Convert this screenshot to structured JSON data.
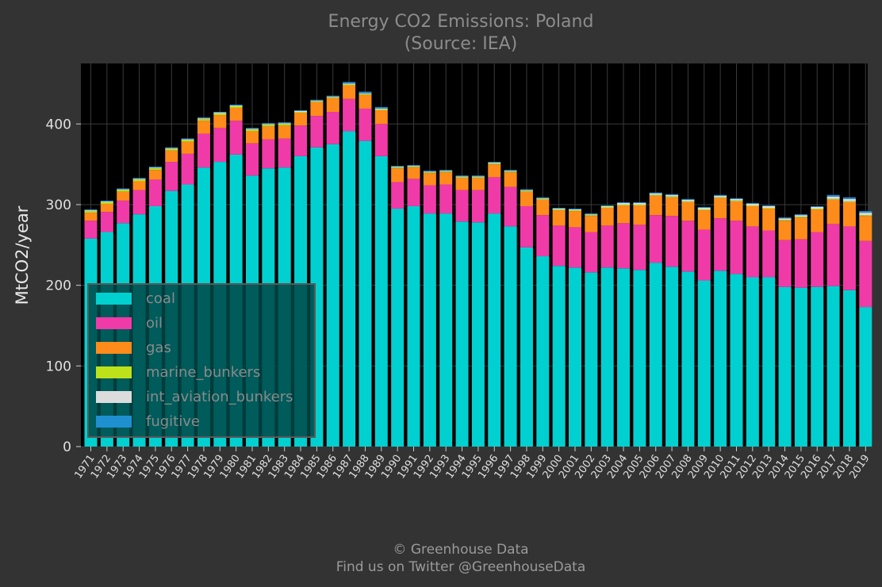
{
  "chart_data": {
    "type": "bar",
    "stacked": true,
    "title": "Energy CO2 Emissions: Poland",
    "subtitle": "(Source: IEA)",
    "xlabel": "",
    "ylabel": "MtCO2/year",
    "ylim": [
      0,
      475
    ],
    "yticks": [
      0,
      100,
      200,
      300,
      400
    ],
    "grid": true,
    "legend_position": "lower-left",
    "categories": [
      "1971",
      "1972",
      "1973",
      "1974",
      "1975",
      "1976",
      "1977",
      "1978",
      "1979",
      "1980",
      "1981",
      "1982",
      "1983",
      "1984",
      "1985",
      "1986",
      "1987",
      "1988",
      "1989",
      "1990",
      "1991",
      "1992",
      "1993",
      "1994",
      "1995",
      "1996",
      "1997",
      "1998",
      "1999",
      "2000",
      "2001",
      "2002",
      "2003",
      "2004",
      "2005",
      "2006",
      "2007",
      "2008",
      "2009",
      "2010",
      "2011",
      "2012",
      "2013",
      "2014",
      "2015",
      "2016",
      "2017",
      "2018",
      "2019"
    ],
    "series": [
      {
        "name": "coal",
        "color": "#00d0d0",
        "values": [
          258,
          266,
          277,
          288,
          298,
          317,
          325,
          346,
          353,
          362,
          336,
          345,
          346,
          360,
          371,
          375,
          391,
          379,
          360,
          295,
          298,
          289,
          289,
          279,
          278,
          289,
          273,
          247,
          236,
          224,
          222,
          216,
          222,
          221,
          219,
          228,
          223,
          217,
          206,
          218,
          214,
          210,
          210,
          198,
          197,
          198,
          199,
          194,
          173
        ]
      },
      {
        "name": "oil",
        "color": "#f03aa8",
        "values": [
          22,
          25,
          28,
          30,
          33,
          36,
          38,
          42,
          42,
          42,
          40,
          36,
          36,
          38,
          39,
          40,
          40,
          40,
          40,
          33,
          34,
          35,
          36,
          39,
          40,
          45,
          49,
          51,
          51,
          50,
          50,
          50,
          52,
          56,
          56,
          59,
          63,
          63,
          63,
          65,
          66,
          63,
          58,
          58,
          60,
          68,
          77,
          79,
          82
        ]
      },
      {
        "name": "gas",
        "color": "#ff8c1a",
        "values": [
          10,
          10,
          11,
          11,
          12,
          14,
          15,
          16,
          16,
          16,
          15,
          16,
          16,
          16,
          17,
          17,
          17,
          17,
          17,
          17,
          14,
          15,
          15,
          15,
          15,
          16,
          18,
          18,
          19,
          19,
          20,
          20,
          22,
          22,
          24,
          24,
          23,
          23,
          24,
          25,
          24,
          25,
          27,
          24,
          27,
          28,
          30,
          30,
          31
        ]
      },
      {
        "name": "marine_bunkers",
        "color": "#bde21a",
        "values": [
          2,
          2,
          2,
          2,
          2,
          2,
          2,
          2,
          2,
          2,
          2,
          2,
          2,
          1,
          1,
          1,
          1,
          1,
          1,
          1,
          1,
          1,
          1,
          1,
          1,
          1,
          1,
          1,
          1,
          1,
          1,
          1,
          1,
          1,
          1,
          1,
          1,
          1,
          1,
          1,
          1,
          1,
          1,
          1,
          1,
          1,
          1,
          1,
          1
        ]
      },
      {
        "name": "int_aviation_bunkers",
        "color": "#dcdcdc",
        "values": [
          1,
          1,
          1,
          1,
          1,
          1,
          1,
          1,
          1,
          1,
          1,
          1,
          1,
          1,
          1,
          1,
          1,
          1,
          1,
          1,
          1,
          1,
          1,
          1,
          1,
          1,
          1,
          1,
          1,
          1,
          1,
          1,
          1,
          2,
          2,
          2,
          2,
          2,
          2,
          2,
          2,
          2,
          2,
          2,
          2,
          2,
          3,
          3,
          3
        ]
      },
      {
        "name": "fugitive",
        "color": "#1e90d0",
        "values": [
          1,
          1,
          1,
          1,
          1,
          1,
          1,
          1,
          1,
          1,
          1,
          1,
          1,
          1,
          1,
          1,
          2,
          2,
          2,
          1,
          1,
          1,
          1,
          1,
          1,
          1,
          1,
          1,
          1,
          1,
          1,
          1,
          1,
          1,
          1,
          1,
          1,
          1,
          1,
          1,
          1,
          1,
          1,
          1,
          1,
          1,
          2,
          2,
          2
        ]
      }
    ],
    "credit_line1": "© Greenhouse Data",
    "credit_line2": "Find us on Twitter @GreenhouseData"
  }
}
